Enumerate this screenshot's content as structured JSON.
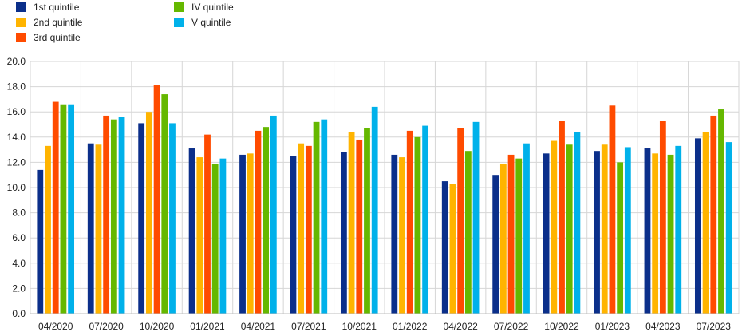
{
  "chart_data": {
    "type": "bar",
    "title": "",
    "xlabel": "",
    "ylabel": "",
    "ylim": [
      0,
      20
    ],
    "yticks": [
      "0.0",
      "2.0",
      "4.0",
      "6.0",
      "8.0",
      "10.0",
      "12.0",
      "14.0",
      "16.0",
      "18.0",
      "20.0"
    ],
    "grid": true,
    "legend_position": "top-left",
    "categories": [
      "04/2020",
      "07/2020",
      "10/2020",
      "01/2021",
      "04/2021",
      "07/2021",
      "10/2021",
      "01/2022",
      "04/2022",
      "07/2022",
      "10/2022",
      "01/2023",
      "04/2023",
      "07/2023"
    ],
    "series": [
      {
        "name": "1st quintile",
        "color": "#0b2f8a",
        "values": [
          11.4,
          13.5,
          15.1,
          13.1,
          12.6,
          12.5,
          12.8,
          12.6,
          10.5,
          11.0,
          12.7,
          12.9,
          13.1,
          13.9
        ]
      },
      {
        "name": "2nd quintile",
        "color": "#ffb400",
        "values": [
          13.3,
          13.4,
          16.0,
          12.4,
          12.7,
          13.5,
          14.4,
          12.4,
          10.3,
          11.9,
          13.7,
          13.4,
          12.7,
          14.4
        ]
      },
      {
        "name": "3rd quintile",
        "color": "#ff4b00",
        "values": [
          16.8,
          15.7,
          18.1,
          14.2,
          14.5,
          13.3,
          13.8,
          14.5,
          14.7,
          12.6,
          15.3,
          16.5,
          15.3,
          15.7
        ]
      },
      {
        "name": "IV quintile",
        "color": "#65b800",
        "values": [
          16.6,
          15.4,
          17.4,
          11.9,
          14.8,
          15.2,
          14.7,
          14.0,
          12.9,
          12.3,
          13.4,
          12.0,
          12.6,
          16.2
        ]
      },
      {
        "name": "V quintile",
        "color": "#00b1ea",
        "values": [
          16.6,
          15.6,
          15.1,
          12.3,
          15.7,
          15.4,
          16.4,
          14.9,
          15.2,
          13.5,
          14.4,
          13.2,
          13.3,
          13.6
        ]
      }
    ]
  }
}
